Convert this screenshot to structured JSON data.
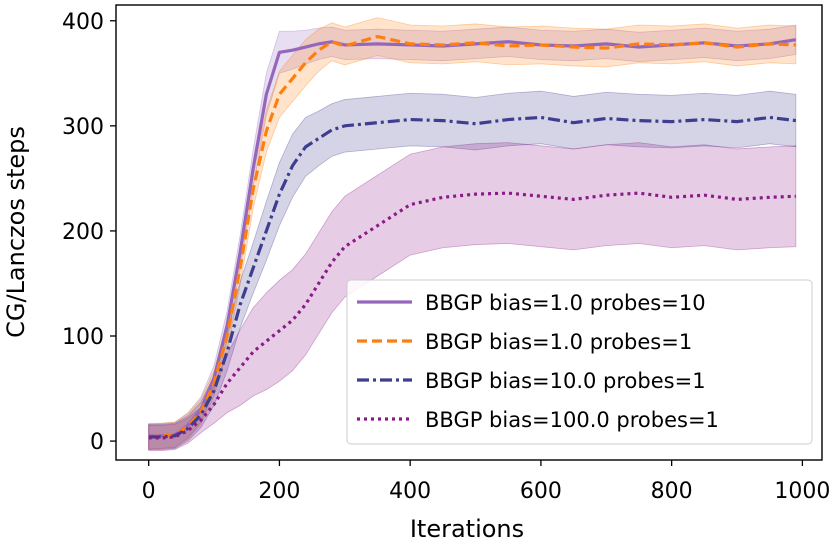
{
  "chart_data": {
    "type": "line",
    "title": "",
    "xlabel": "Iterations",
    "ylabel": "CG/Lanczos steps",
    "xlim": [
      -50,
      1030
    ],
    "ylim": [
      -18,
      415
    ],
    "xticks": [
      0,
      200,
      400,
      600,
      800,
      1000
    ],
    "yticks": [
      0,
      100,
      200,
      300,
      400
    ],
    "legend_position": "lower-right",
    "grid": false,
    "series": [
      {
        "name": "BBGP bias=1.0 probes=10",
        "color": "#9467bd",
        "dash": "solid",
        "x": [
          0,
          20,
          40,
          60,
          80,
          100,
          120,
          140,
          160,
          180,
          200,
          220,
          240,
          260,
          280,
          300,
          350,
          400,
          450,
          500,
          550,
          600,
          650,
          700,
          750,
          800,
          850,
          900,
          950,
          990
        ],
        "values": [
          5,
          5,
          6,
          15,
          30,
          60,
          110,
          180,
          260,
          330,
          370,
          372,
          375,
          378,
          380,
          377,
          378,
          377,
          376,
          378,
          380,
          377,
          376,
          378,
          375,
          377,
          379,
          376,
          378,
          382
        ],
        "band": [
          12,
          12,
          12,
          12,
          12,
          12,
          14,
          16,
          18,
          20,
          20,
          18,
          16,
          15,
          14,
          14,
          14,
          14,
          14,
          14,
          14,
          14,
          14,
          14,
          14,
          14,
          14,
          14,
          14,
          14
        ]
      },
      {
        "name": "BBGP bias=1.0 probes=1",
        "color": "#ff7f0e",
        "dash": "dashed",
        "x": [
          0,
          20,
          40,
          60,
          80,
          100,
          120,
          140,
          160,
          180,
          200,
          220,
          240,
          260,
          280,
          300,
          350,
          400,
          450,
          500,
          550,
          600,
          650,
          700,
          750,
          800,
          850,
          900,
          950,
          990
        ],
        "values": [
          4,
          5,
          6,
          14,
          28,
          55,
          100,
          165,
          240,
          295,
          330,
          345,
          360,
          372,
          380,
          376,
          385,
          378,
          377,
          379,
          376,
          377,
          375,
          374,
          378,
          377,
          379,
          375,
          378,
          377
        ],
        "band": [
          12,
          12,
          12,
          12,
          12,
          12,
          14,
          16,
          18,
          20,
          22,
          22,
          22,
          20,
          18,
          18,
          18,
          18,
          18,
          18,
          18,
          18,
          18,
          18,
          18,
          18,
          18,
          18,
          18,
          18
        ]
      },
      {
        "name": "BBGP bias=10.0 probes=1",
        "color": "#3f3d8f",
        "dash": "dashdot",
        "x": [
          0,
          20,
          40,
          60,
          80,
          100,
          120,
          140,
          160,
          180,
          200,
          220,
          240,
          260,
          280,
          300,
          350,
          400,
          450,
          500,
          550,
          600,
          650,
          700,
          750,
          800,
          850,
          900,
          950,
          990
        ],
        "values": [
          4,
          4,
          5,
          12,
          25,
          48,
          85,
          130,
          165,
          200,
          235,
          262,
          280,
          288,
          296,
          300,
          303,
          306,
          305,
          302,
          306,
          308,
          303,
          307,
          305,
          304,
          306,
          304,
          308,
          305
        ],
        "band": [
          12,
          12,
          12,
          12,
          12,
          14,
          18,
          22,
          24,
          28,
          30,
          30,
          28,
          26,
          25,
          25,
          25,
          25,
          25,
          25,
          25,
          25,
          25,
          25,
          25,
          25,
          25,
          25,
          25,
          25
        ]
      },
      {
        "name": "BBGP bias=100.0 probes=1",
        "color": "#8b1a89",
        "dash": "dotted",
        "x": [
          0,
          20,
          40,
          60,
          80,
          100,
          120,
          140,
          160,
          180,
          200,
          220,
          240,
          260,
          280,
          300,
          350,
          400,
          450,
          500,
          550,
          600,
          650,
          700,
          750,
          800,
          850,
          900,
          950,
          990
        ],
        "values": [
          3,
          3,
          4,
          10,
          20,
          35,
          55,
          70,
          85,
          95,
          105,
          115,
          130,
          150,
          170,
          185,
          205,
          225,
          232,
          235,
          236,
          233,
          230,
          234,
          236,
          232,
          234,
          230,
          232,
          233
        ],
        "band": [
          12,
          12,
          12,
          12,
          12,
          18,
          28,
          36,
          42,
          46,
          48,
          48,
          48,
          48,
          48,
          48,
          48,
          48,
          48,
          48,
          48,
          48,
          48,
          48,
          48,
          48,
          48,
          48,
          48,
          48
        ]
      }
    ]
  }
}
